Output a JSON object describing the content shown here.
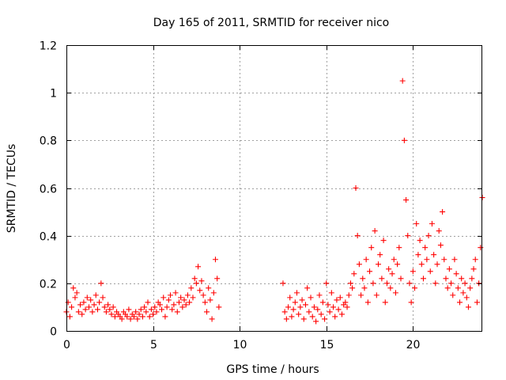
{
  "chart_data": {
    "type": "scatter",
    "title": "Day 165 of 2011, SRMTID for receiver nico",
    "xlabel": "GPS time / hours",
    "ylabel": "SRMTID / TECUs",
    "xlim": [
      0,
      24
    ],
    "ylim": [
      0,
      1.2
    ],
    "x_ticks": [
      0,
      5,
      10,
      15,
      20
    ],
    "x_tick_labels": [
      "0",
      "5",
      "10",
      "15",
      "20"
    ],
    "y_ticks": [
      0,
      0.2,
      0.4,
      0.6,
      0.8,
      1,
      1.2
    ],
    "y_tick_labels": [
      "0",
      "0.2",
      "0.4",
      "0.6",
      "0.8",
      "1",
      "1.2"
    ],
    "grid": true,
    "marker": "plus",
    "series": [
      {
        "name": "SRMTID",
        "color": "#ff0000",
        "x": [
          0.0,
          0.1,
          0.2,
          0.3,
          0.4,
          0.5,
          0.6,
          0.7,
          0.8,
          0.9,
          1.0,
          1.1,
          1.2,
          1.3,
          1.4,
          1.5,
          1.6,
          1.7,
          1.8,
          1.9,
          2.0,
          2.1,
          2.2,
          2.3,
          2.4,
          2.5,
          2.6,
          2.7,
          2.8,
          2.9,
          3.0,
          3.1,
          3.2,
          3.3,
          3.4,
          3.5,
          3.6,
          3.7,
          3.8,
          3.9,
          4.0,
          4.1,
          4.2,
          4.3,
          4.4,
          4.5,
          4.6,
          4.7,
          4.8,
          4.9,
          5.0,
          5.1,
          5.2,
          5.3,
          5.4,
          5.5,
          5.6,
          5.7,
          5.8,
          5.9,
          6.0,
          6.1,
          6.2,
          6.3,
          6.4,
          6.5,
          6.6,
          6.7,
          6.8,
          6.9,
          7.0,
          7.1,
          7.2,
          7.3,
          7.4,
          7.5,
          7.6,
          7.7,
          7.8,
          7.9,
          8.0,
          8.1,
          8.2,
          8.3,
          8.4,
          8.5,
          8.6,
          8.7,
          8.8,
          12.5,
          12.6,
          12.7,
          12.8,
          12.9,
          13.0,
          13.1,
          13.2,
          13.3,
          13.4,
          13.5,
          13.6,
          13.7,
          13.8,
          13.9,
          14.0,
          14.1,
          14.2,
          14.3,
          14.4,
          14.5,
          14.6,
          14.7,
          14.8,
          14.9,
          15.0,
          15.1,
          15.2,
          15.3,
          15.4,
          15.5,
          15.6,
          15.7,
          15.8,
          15.9,
          16.0,
          16.1,
          16.2,
          16.3,
          16.4,
          16.5,
          16.6,
          16.7,
          16.8,
          16.9,
          17.0,
          17.1,
          17.2,
          17.3,
          17.4,
          17.5,
          17.6,
          17.7,
          17.8,
          17.9,
          18.0,
          18.1,
          18.2,
          18.3,
          18.4,
          18.5,
          18.6,
          18.7,
          18.8,
          18.9,
          19.0,
          19.1,
          19.2,
          19.3,
          19.4,
          19.5,
          19.6,
          19.7,
          19.8,
          19.9,
          20.0,
          20.1,
          20.2,
          20.3,
          20.4,
          20.5,
          20.6,
          20.7,
          20.8,
          20.9,
          21.0,
          21.1,
          21.2,
          21.3,
          21.4,
          21.5,
          21.6,
          21.7,
          21.8,
          21.9,
          22.0,
          22.1,
          22.2,
          22.3,
          22.4,
          22.5,
          22.6,
          22.7,
          22.8,
          22.9,
          23.0,
          23.1,
          23.2,
          23.3,
          23.4,
          23.5,
          23.6,
          23.7,
          23.8,
          23.9,
          24.0
        ],
        "y": [
          0.08,
          0.12,
          0.06,
          0.1,
          0.18,
          0.14,
          0.16,
          0.08,
          0.11,
          0.07,
          0.12,
          0.09,
          0.14,
          0.1,
          0.13,
          0.08,
          0.11,
          0.15,
          0.09,
          0.12,
          0.2,
          0.14,
          0.1,
          0.08,
          0.11,
          0.09,
          0.07,
          0.1,
          0.06,
          0.08,
          0.07,
          0.06,
          0.05,
          0.08,
          0.07,
          0.06,
          0.09,
          0.05,
          0.07,
          0.06,
          0.08,
          0.05,
          0.07,
          0.09,
          0.06,
          0.1,
          0.08,
          0.12,
          0.06,
          0.09,
          0.07,
          0.1,
          0.08,
          0.12,
          0.11,
          0.09,
          0.14,
          0.06,
          0.1,
          0.13,
          0.15,
          0.09,
          0.11,
          0.16,
          0.08,
          0.12,
          0.14,
          0.1,
          0.13,
          0.11,
          0.15,
          0.12,
          0.18,
          0.14,
          0.22,
          0.2,
          0.27,
          0.17,
          0.21,
          0.15,
          0.12,
          0.08,
          0.18,
          0.13,
          0.05,
          0.16,
          0.3,
          0.22,
          0.1,
          0.2,
          0.08,
          0.05,
          0.1,
          0.14,
          0.06,
          0.09,
          0.12,
          0.16,
          0.07,
          0.1,
          0.13,
          0.05,
          0.11,
          0.18,
          0.08,
          0.14,
          0.06,
          0.1,
          0.04,
          0.09,
          0.15,
          0.07,
          0.12,
          0.05,
          0.2,
          0.11,
          0.08,
          0.16,
          0.1,
          0.06,
          0.13,
          0.09,
          0.14,
          0.07,
          0.11,
          0.12,
          0.1,
          0.15,
          0.2,
          0.18,
          0.24,
          0.6,
          0.4,
          0.28,
          0.15,
          0.22,
          0.18,
          0.3,
          0.12,
          0.25,
          0.35,
          0.2,
          0.42,
          0.15,
          0.28,
          0.32,
          0.22,
          0.38,
          0.12,
          0.2,
          0.26,
          0.18,
          0.24,
          0.3,
          0.16,
          0.28,
          0.35,
          0.22,
          1.05,
          0.8,
          0.55,
          0.4,
          0.2,
          0.12,
          0.25,
          0.18,
          0.45,
          0.32,
          0.38,
          0.28,
          0.22,
          0.35,
          0.3,
          0.4,
          0.25,
          0.45,
          0.32,
          0.2,
          0.28,
          0.42,
          0.36,
          0.5,
          0.3,
          0.22,
          0.18,
          0.26,
          0.2,
          0.15,
          0.3,
          0.24,
          0.18,
          0.12,
          0.22,
          0.16,
          0.2,
          0.14,
          0.1,
          0.18,
          0.22,
          0.26,
          0.3,
          0.12,
          0.2,
          0.35,
          0.56
        ]
      }
    ]
  }
}
